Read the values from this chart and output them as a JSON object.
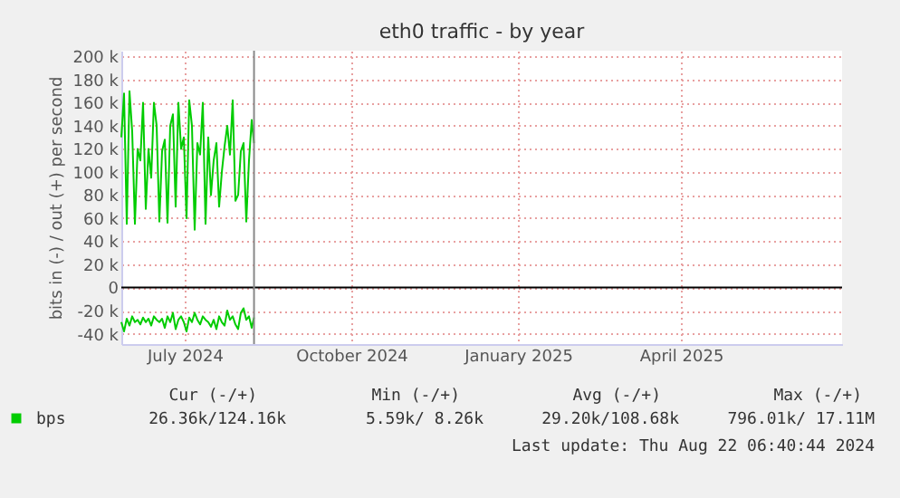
{
  "chart_data": {
    "type": "line",
    "title": "eth0 traffic - by year",
    "ylabel": "bits in (-) / out (+) per second",
    "x": [
      "2024-06-10T00:00",
      "2024-06-11T12:00",
      "2024-06-13T00:00",
      "2024-06-14T12:00",
      "2024-06-16T00:00",
      "2024-06-17T12:00",
      "2024-06-19T00:00",
      "2024-06-20T12:00",
      "2024-06-22T00:00",
      "2024-06-23T12:00",
      "2024-06-25T00:00",
      "2024-06-26T12:00",
      "2024-06-28T00:00",
      "2024-06-29T12:00",
      "2024-07-01T00:00",
      "2024-07-02T12:00",
      "2024-07-04T00:00",
      "2024-07-05T12:00",
      "2024-07-07T00:00",
      "2024-07-08T12:00",
      "2024-07-10T00:00",
      "2024-07-11T12:00",
      "2024-07-13T00:00",
      "2024-07-14T12:00",
      "2024-07-16T00:00",
      "2024-07-17T12:00",
      "2024-07-19T00:00",
      "2024-07-20T12:00",
      "2024-07-22T00:00",
      "2024-07-23T12:00",
      "2024-07-25T00:00",
      "2024-07-26T12:00",
      "2024-07-28T00:00",
      "2024-07-29T12:00",
      "2024-07-31T00:00",
      "2024-08-01T12:00",
      "2024-08-03T00:00",
      "2024-08-04T12:00",
      "2024-08-06T00:00",
      "2024-08-07T12:00",
      "2024-08-09T00:00",
      "2024-08-10T12:00",
      "2024-08-12T00:00",
      "2024-08-13T12:00",
      "2024-08-15T00:00",
      "2024-08-16T12:00",
      "2024-08-18T00:00",
      "2024-08-19T12:00",
      "2024-08-21T00:00",
      "2024-08-22T06:00"
    ],
    "series": [
      {
        "name": "bps",
        "color": "#00cc00",
        "values": [
          130000,
          168000,
          55000,
          170000,
          135000,
          55000,
          120000,
          110000,
          160000,
          68000,
          120000,
          95000,
          160000,
          140000,
          57000,
          118000,
          128000,
          56000,
          140000,
          150000,
          70000,
          160000,
          120000,
          130000,
          60000,
          162000,
          140000,
          50000,
          125000,
          115000,
          160000,
          55000,
          130000,
          80000,
          110000,
          125000,
          70000,
          100000,
          122000,
          140000,
          115000,
          162000,
          75000,
          80000,
          118000,
          125000,
          57000,
          110000,
          145000,
          125000
        ]
      },
      {
        "color": "#00cc00",
        "values": [
          -30000,
          -38000,
          -27000,
          -33000,
          -25000,
          -30000,
          -28000,
          -32000,
          -26000,
          -30000,
          -27000,
          -33000,
          -25000,
          -28000,
          -30000,
          -27000,
          -35000,
          -25000,
          -30000,
          -22000,
          -36000,
          -28000,
          -25000,
          -30000,
          -38000,
          -26000,
          -30000,
          -22000,
          -28000,
          -32000,
          -25000,
          -28000,
          -30000,
          -34000,
          -28000,
          -36000,
          -25000,
          -30000,
          -33000,
          -20000,
          -28000,
          -25000,
          -32000,
          -36000,
          -22000,
          -18000,
          -28000,
          -25000,
          -35000,
          -26000
        ]
      }
    ],
    "xlim": [
      "2024-06-10",
      "2025-07-13"
    ],
    "xticks": [
      {
        "value": "2024-07-15",
        "label": "July 2024"
      },
      {
        "value": "2024-10-15",
        "label": "October 2024"
      },
      {
        "value": "2025-01-15",
        "label": "January 2025"
      },
      {
        "value": "2025-04-15",
        "label": "April 2025"
      }
    ],
    "ylim": [
      -49000,
      205000
    ],
    "yticks": [
      {
        "value": -40000,
        "label": "-40 k"
      },
      {
        "value": -20000,
        "label": "-20 k"
      },
      0,
      {
        "value": 20000,
        "label": "20 k"
      },
      {
        "value": 40000,
        "label": "40 k"
      },
      {
        "value": 60000,
        "label": "60 k"
      },
      {
        "value": 80000,
        "label": "80 k"
      },
      {
        "value": 100000,
        "label": "100 k"
      },
      {
        "value": 120000,
        "label": "120 k"
      },
      {
        "value": 140000,
        "label": "140 k"
      },
      {
        "value": 160000,
        "label": "160 k"
      },
      {
        "value": 180000,
        "label": "180 k"
      },
      {
        "value": 200000,
        "label": "200 k"
      }
    ],
    "ref_lines": [
      {
        "axis": "y",
        "value": 0,
        "color": "#000000"
      },
      {
        "axis": "x",
        "value": "2024-08-22T06:40",
        "color": "#888888"
      }
    ],
    "grid": true,
    "legend": "bottom left",
    "marker": "none",
    "line_style": "solid",
    "annotations": [
      "Cur (-/+)",
      "Min (-/+)",
      "Avg (-/+)",
      "Max (-/+)",
      "26.36k/124.16k",
      "5.59k/   8.26k",
      "29.20k/108.68k",
      "796.01k/ 17.11M",
      "Last update: Thu Aug 22 06:40:44 2024"
    ]
  }
}
